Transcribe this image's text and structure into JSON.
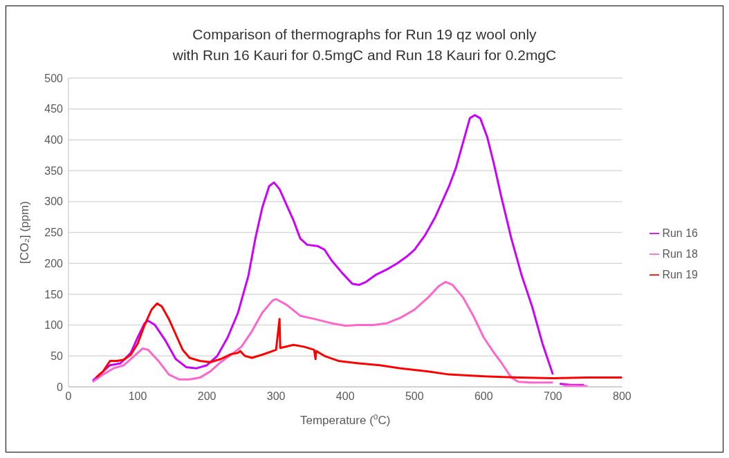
{
  "chart_data": {
    "type": "line",
    "title": "Comparison of thermographs for Run 19 qz wool only\nwith Run 16 Kauri for 0.5mgC and Run 18 Kauri for 0.2mgC",
    "xlabel": "Temperature ($^{o}$C)",
    "ylabel": "[CO₂] (ppm)",
    "xlim": [
      0,
      800
    ],
    "xticks": [
      0,
      100,
      200,
      300,
      400,
      500,
      600,
      700,
      800
    ],
    "ylim": [
      0,
      500
    ],
    "yticks": [
      0,
      50,
      100,
      150,
      200,
      250,
      300,
      350,
      400,
      450,
      500
    ],
    "grid": "y",
    "legend": "right",
    "marker": "none",
    "line_style": "solid",
    "series": [
      {
        "name": "Run 16",
        "color": "#cc00ff",
        "x": [
          35,
          50,
          60,
          75,
          90,
          100,
          110,
          115,
          125,
          140,
          155,
          170,
          185,
          200,
          215,
          230,
          245,
          260,
          270,
          280,
          290,
          297,
          305,
          315,
          325,
          335,
          345,
          360,
          370,
          380,
          395,
          410,
          420,
          430,
          445,
          460,
          475,
          490,
          500,
          515,
          530,
          540,
          550,
          560,
          570,
          580,
          587,
          595,
          605,
          615,
          625,
          640,
          655,
          670,
          685,
          700,
          705,
          710,
          725,
          745
        ],
        "values": [
          10,
          25,
          35,
          38,
          55,
          80,
          103,
          107,
          100,
          75,
          45,
          32,
          30,
          35,
          50,
          80,
          120,
          180,
          240,
          290,
          325,
          331,
          320,
          295,
          270,
          240,
          230,
          228,
          222,
          205,
          185,
          167,
          165,
          170,
          182,
          190,
          200,
          212,
          222,
          245,
          275,
          300,
          325,
          355,
          395,
          435,
          440,
          435,
          405,
          360,
          310,
          240,
          180,
          130,
          70,
          20,
          null,
          5,
          3,
          3
        ]
      },
      {
        "name": "Run 18",
        "color": "#ff66cc",
        "x": [
          35,
          50,
          65,
          80,
          95,
          107,
          115,
          130,
          145,
          160,
          175,
          190,
          205,
          220,
          235,
          250,
          265,
          280,
          295,
          300,
          315,
          335,
          355,
          380,
          400,
          420,
          440,
          460,
          480,
          500,
          520,
          535,
          545,
          555,
          570,
          585,
          600,
          615,
          625,
          640,
          650,
          670,
          700,
          705,
          715,
          750
        ],
        "values": [
          8,
          20,
          30,
          35,
          50,
          62,
          60,
          42,
          20,
          12,
          12,
          15,
          25,
          40,
          52,
          65,
          90,
          120,
          140,
          142,
          133,
          115,
          110,
          103,
          99,
          100,
          100,
          103,
          112,
          125,
          145,
          163,
          170,
          165,
          145,
          115,
          80,
          55,
          40,
          15,
          8,
          7,
          7,
          null,
          2,
          1
        ]
      },
      {
        "name": "Run 19",
        "color": "#ff0000",
        "x": [
          40,
          50,
          60,
          70,
          80,
          90,
          100,
          110,
          120,
          128,
          135,
          145,
          155,
          165,
          175,
          190,
          205,
          220,
          235,
          245,
          248,
          255,
          265,
          280,
          300,
          305,
          306,
          325,
          340,
          355,
          357,
          358,
          370,
          390,
          420,
          450,
          480,
          520,
          550,
          600,
          650,
          700,
          750,
          800
        ],
        "values": [
          15,
          25,
          42,
          42,
          44,
          52,
          70,
          100,
          125,
          135,
          130,
          110,
          85,
          60,
          47,
          42,
          40,
          45,
          53,
          55,
          58,
          50,
          47,
          52,
          60,
          110,
          63,
          68,
          65,
          60,
          45,
          58,
          50,
          42,
          38,
          35,
          30,
          25,
          20,
          17,
          15,
          14,
          15,
          15
        ]
      }
    ]
  }
}
